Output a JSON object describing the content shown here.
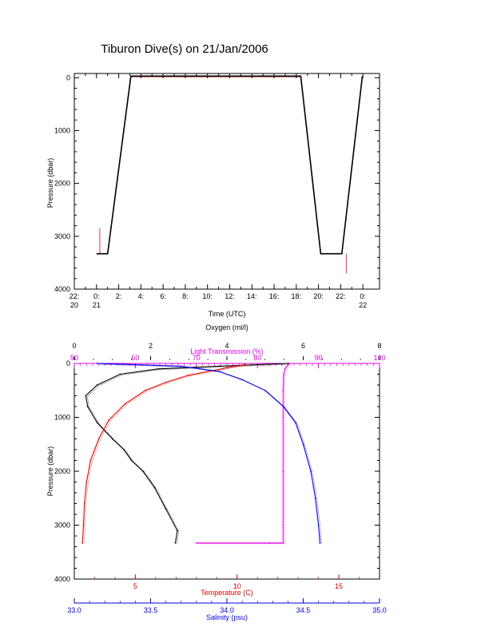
{
  "title": "Tiburon Dive(s) on 21/Jan/2006",
  "colors": {
    "black": "#000000",
    "red": "#e00000",
    "magenta": "#e000e0",
    "blue": "#0000e0"
  },
  "chart_data": [
    {
      "type": "line",
      "title": "Tiburon Dive(s) on 21/Jan/2006",
      "xlabel": "Time (UTC)",
      "ylabel": "Pressure (dbar)",
      "x_unit": "hours since 20-Jan 22:00",
      "xlim": [
        0,
        27.5
      ],
      "ylim": [
        4000,
        -80
      ],
      "y_ticks": [
        "0",
        "1000",
        "2000",
        "3000",
        "4000"
      ],
      "x_tick_labels": [
        {
          "x": 0,
          "line1": "22:",
          "line2": "20"
        },
        {
          "x": 2,
          "line1": "0:",
          "line2": "21"
        },
        {
          "x": 4,
          "line1": "2:",
          "line2": ""
        },
        {
          "x": 6,
          "line1": "4:",
          "line2": ""
        },
        {
          "x": 8,
          "line1": "6:",
          "line2": ""
        },
        {
          "x": 10,
          "line1": "8:",
          "line2": ""
        },
        {
          "x": 12,
          "line1": "10:",
          "line2": ""
        },
        {
          "x": 14,
          "line1": "12:",
          "line2": ""
        },
        {
          "x": 16,
          "line1": "14:",
          "line2": ""
        },
        {
          "x": 18,
          "line1": "16:",
          "line2": ""
        },
        {
          "x": 20,
          "line1": "18:",
          "line2": ""
        },
        {
          "x": 22,
          "line1": "20:",
          "line2": ""
        },
        {
          "x": 24,
          "line1": "22:",
          "line2": ""
        },
        {
          "x": 26,
          "line1": "0:",
          "line2": "22"
        }
      ],
      "series": [
        {
          "color": "red",
          "points": [
            [
              2.05,
              3330
            ],
            [
              3.0,
              3330
            ],
            [
              5.1,
              -20
            ],
            [
              20.4,
              -20
            ],
            [
              22.2,
              3330
            ],
            [
              24.1,
              3330
            ],
            [
              25.95,
              -20
            ]
          ]
        },
        {
          "color": "black",
          "points": [
            [
              2.0,
              3330
            ],
            [
              3.0,
              3330
            ],
            [
              5.1,
              -30
            ],
            [
              20.4,
              -30
            ],
            [
              22.2,
              3330
            ],
            [
              24.1,
              3330
            ],
            [
              25.95,
              -30
            ]
          ]
        }
      ],
      "spikes": [
        {
          "x": 2.3,
          "y_top": 2850,
          "y_bottom": 3330
        },
        {
          "x": 24.5,
          "y_top": 3330,
          "y_bottom": 3700
        }
      ]
    },
    {
      "type": "scatter",
      "ylabel": "Pressure (dbar)",
      "ylim": [
        4000,
        0
      ],
      "y_ticks": [
        "0",
        "1000",
        "2000",
        "3000",
        "4000"
      ],
      "axes": {
        "oxygen": {
          "label": "Oxygen (ml/l)",
          "range": [
            0,
            8
          ],
          "ticks": [
            "0",
            "2",
            "4",
            "6",
            "8"
          ],
          "color": "black",
          "position": "top"
        },
        "transmission": {
          "label": "Light Transmission (%)",
          "range": [
            50,
            100
          ],
          "ticks": [
            "50",
            "60",
            "70",
            "80",
            "90",
            "100"
          ],
          "color": "magenta",
          "position": "top"
        },
        "temperature": {
          "label": "Temperature (C)",
          "range": [
            2,
            17
          ],
          "ticks": [
            "5",
            "10",
            "15"
          ],
          "color": "red",
          "position": "bottom"
        },
        "salinity": {
          "label": "Salinity (psu)",
          "range": [
            33,
            35
          ],
          "ticks": [
            "33.0",
            "33.5",
            "34.0",
            "34.5",
            "35.0"
          ],
          "color": "blue",
          "position": "bottom"
        }
      },
      "series": [
        {
          "axis": "oxygen",
          "color": "black",
          "points": [
            [
              5.6,
              0
            ],
            [
              3.8,
              50
            ],
            [
              2.2,
              100
            ],
            [
              1.2,
              200
            ],
            [
              0.6,
              400
            ],
            [
              0.3,
              600
            ],
            [
              0.35,
              800
            ],
            [
              0.6,
              1100
            ],
            [
              1.0,
              1400
            ],
            [
              1.3,
              1600
            ],
            [
              1.5,
              1800
            ],
            [
              1.8,
              2000
            ],
            [
              2.1,
              2300
            ],
            [
              2.4,
              2700
            ],
            [
              2.7,
              3100
            ],
            [
              2.65,
              3330
            ]
          ]
        },
        {
          "axis": "transmission",
          "color": "magenta",
          "points": [
            [
              85.2,
              0
            ],
            [
              84.5,
              100
            ],
            [
              84.3,
              200
            ],
            [
              84.2,
              500
            ],
            [
              84.2,
              1000
            ],
            [
              84.2,
              2000
            ],
            [
              84.2,
              3000
            ],
            [
              84.2,
              3330
            ],
            [
              82.0,
              3330
            ],
            [
              70.0,
              3330
            ]
          ]
        },
        {
          "axis": "temperature",
          "color": "red",
          "points": [
            [
              10.4,
              20
            ],
            [
              9.5,
              80
            ],
            [
              7.6,
              220
            ],
            [
              6.5,
              350
            ],
            [
              5.5,
              500
            ],
            [
              4.5,
              750
            ],
            [
              3.7,
              1050
            ],
            [
              3.2,
              1400
            ],
            [
              2.8,
              1800
            ],
            [
              2.6,
              2200
            ],
            [
              2.5,
              2600
            ],
            [
              2.45,
              3000
            ],
            [
              2.4,
              3330
            ]
          ]
        },
        {
          "axis": "salinity",
          "color": "blue",
          "points": [
            [
              33.15,
              0
            ],
            [
              33.7,
              50
            ],
            [
              33.95,
              150
            ],
            [
              34.1,
              300
            ],
            [
              34.25,
              500
            ],
            [
              34.37,
              800
            ],
            [
              34.45,
              1100
            ],
            [
              34.5,
              1500
            ],
            [
              34.55,
              2000
            ],
            [
              34.58,
              2500
            ],
            [
              34.6,
              3000
            ],
            [
              34.61,
              3330
            ]
          ]
        }
      ]
    }
  ]
}
